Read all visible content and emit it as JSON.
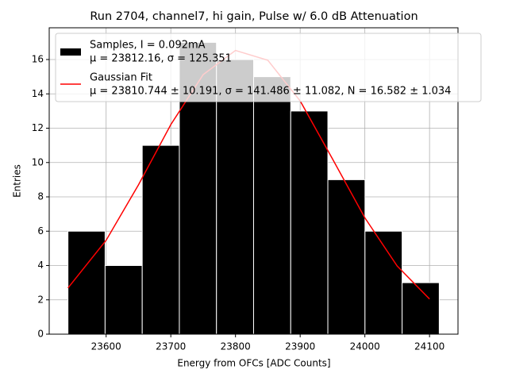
{
  "chart_data": {
    "type": "histogram",
    "title": "Run 2704, channel7, hi gain, Pulse w/ 6.0 dB Attenuation",
    "xlabel": "Energy from OFCs [ADC Counts]",
    "ylabel": "Entries",
    "xlim": [
      23512,
      24144
    ],
    "ylim": [
      0,
      17.85
    ],
    "xticks": [
      23600,
      23700,
      23800,
      23900,
      24000,
      24100
    ],
    "yticks": [
      0,
      2,
      4,
      6,
      8,
      10,
      12,
      14,
      16
    ],
    "grid": true,
    "legend": "upper left",
    "series": [
      {
        "type": "histogram",
        "name": "Samples, I = 0.092mA",
        "stats": "μ = 23812.16, σ = 125.351",
        "color": "#000000",
        "bins": [
          23541,
          23598.4,
          23655.8,
          23713.2,
          23770.6,
          23828,
          23885.4,
          23942.8,
          24000.2,
          24057.6,
          24115
        ],
        "values": [
          6,
          4,
          11,
          17,
          16,
          15,
          13,
          9,
          6,
          3
        ]
      },
      {
        "type": "line",
        "name": "Gaussian Fit",
        "stats": "μ = 23810.744 ± 10.191, σ = 141.486 ± 11.082, N = 16.582 ± 1.034",
        "color": "#ff0000",
        "x": [
          23541,
          23600,
          23650,
          23700,
          23750,
          23800,
          23850,
          23900,
          23950,
          24000,
          24050,
          24100
        ],
        "values": [
          2.69,
          5.47,
          8.7,
          12.21,
          15.12,
          16.53,
          15.96,
          13.59,
          10.21,
          6.78,
          3.97,
          2.05
        ]
      }
    ]
  }
}
